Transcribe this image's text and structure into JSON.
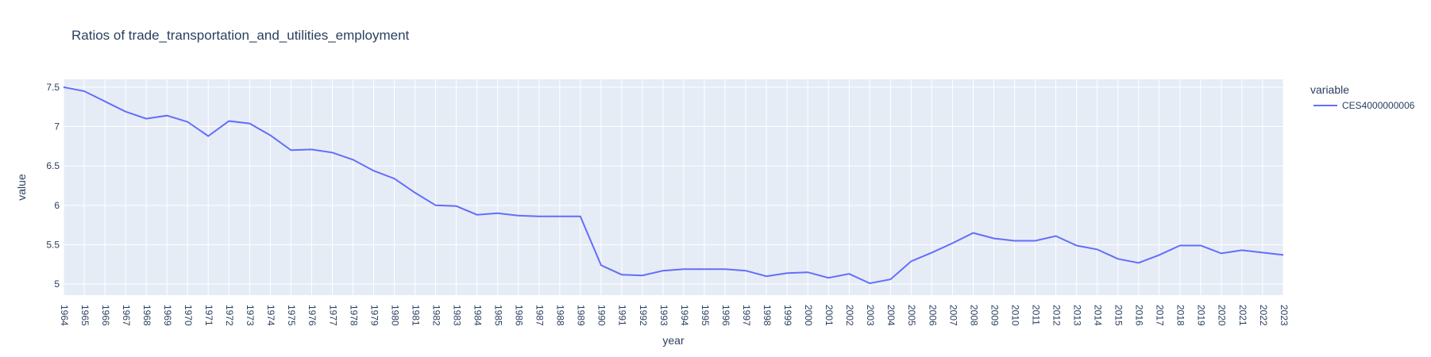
{
  "chart_data": {
    "type": "line",
    "title": "Ratios of trade_transportation_and_utilities_employment",
    "xlabel": "year",
    "ylabel": "value",
    "xlim": [
      1964,
      2023
    ],
    "ylim": [
      4.86,
      7.6
    ],
    "yticks": [
      5,
      5.5,
      6,
      6.5,
      7,
      7.5
    ],
    "grid": true,
    "legend": {
      "title": "variable",
      "placement": "right"
    },
    "line_color": "#636efa",
    "plot_bg": "#e5ecf6",
    "x": [
      1964,
      1965,
      1966,
      1967,
      1968,
      1969,
      1970,
      1971,
      1972,
      1973,
      1974,
      1975,
      1976,
      1977,
      1978,
      1979,
      1980,
      1981,
      1982,
      1983,
      1984,
      1985,
      1986,
      1987,
      1988,
      1989,
      1990,
      1991,
      1992,
      1993,
      1994,
      1995,
      1996,
      1997,
      1998,
      1999,
      2000,
      2001,
      2002,
      2003,
      2004,
      2005,
      2006,
      2007,
      2008,
      2009,
      2010,
      2011,
      2012,
      2013,
      2014,
      2015,
      2016,
      2017,
      2018,
      2019,
      2020,
      2021,
      2022,
      2023
    ],
    "series": [
      {
        "name": "CES4000000006",
        "values": [
          7.5,
          7.45,
          7.32,
          7.19,
          7.1,
          7.14,
          7.06,
          6.88,
          7.07,
          7.04,
          6.89,
          6.7,
          6.71,
          6.67,
          6.58,
          6.44,
          6.34,
          6.16,
          6.0,
          5.99,
          5.88,
          5.9,
          5.87,
          5.86,
          5.86,
          5.86,
          5.24,
          5.12,
          5.11,
          5.17,
          5.19,
          5.19,
          5.19,
          5.17,
          5.1,
          5.14,
          5.15,
          5.08,
          5.13,
          5.01,
          5.06,
          5.29,
          5.4,
          5.52,
          5.65,
          5.58,
          5.55,
          5.55,
          5.61,
          5.49,
          5.44,
          5.32,
          5.27,
          5.37,
          5.49,
          5.49,
          5.39,
          5.43,
          5.4,
          5.37
        ]
      }
    ]
  }
}
